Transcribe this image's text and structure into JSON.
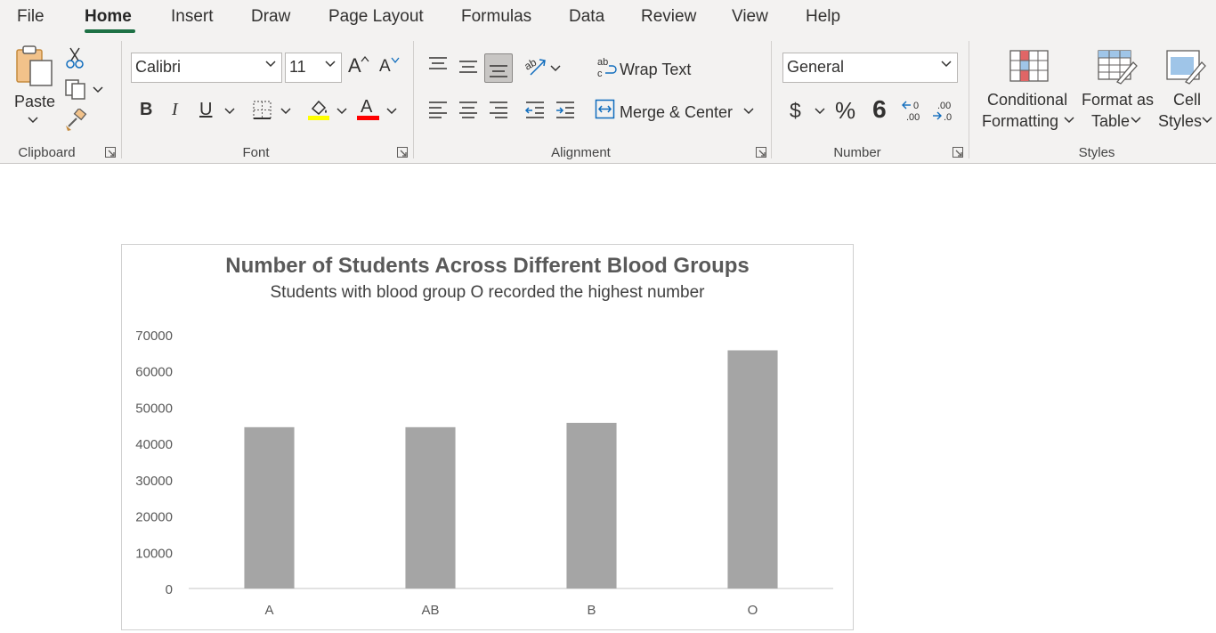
{
  "menu": {
    "tabs": [
      "File",
      "Home",
      "Insert",
      "Draw",
      "Page Layout",
      "Formulas",
      "Data",
      "Review",
      "View",
      "Help"
    ],
    "active": "Home"
  },
  "ribbon": {
    "clipboard": {
      "paste_label": "Paste",
      "group_label": "Clipboard"
    },
    "font": {
      "font_name": "Calibri",
      "font_size": "11",
      "group_label": "Font",
      "bold": "B",
      "italic": "I",
      "underline": "U",
      "grow": "A",
      "shrink": "A",
      "font_color_glyph": "A",
      "highlight_color": "#ffff00",
      "font_color": "#ff0000"
    },
    "alignment": {
      "wrap_text": "Wrap Text",
      "merge_center": "Merge & Center",
      "group_label": "Alignment"
    },
    "number": {
      "format": "General",
      "currency": "$",
      "percent": "%",
      "comma": "9",
      "group_label": "Number"
    },
    "styles": {
      "conditional_line1": "Conditional",
      "conditional_line2": "Formatting",
      "format_table_line1": "Format as",
      "format_table_line2": "Table",
      "cell_styles_line1": "Cell",
      "cell_styles_line2": "Styles",
      "group_label": "Styles"
    }
  },
  "accent_color": "#1e7145",
  "chart_data": {
    "type": "bar",
    "title": "Number of Students Across Different Blood Groups",
    "subtitle": "Students with blood group O recorded the highest number",
    "categories": [
      "A",
      "AB",
      "B",
      "O"
    ],
    "values": [
      44500,
      44500,
      45700,
      65700
    ],
    "ylim": [
      0,
      70000
    ],
    "yticks": [
      "0",
      "10000",
      "20000",
      "30000",
      "40000",
      "50000",
      "60000",
      "70000"
    ],
    "bar_color": "#a5a5a5",
    "xlabel": "",
    "ylabel": "",
    "legend": "none",
    "grid": false
  }
}
